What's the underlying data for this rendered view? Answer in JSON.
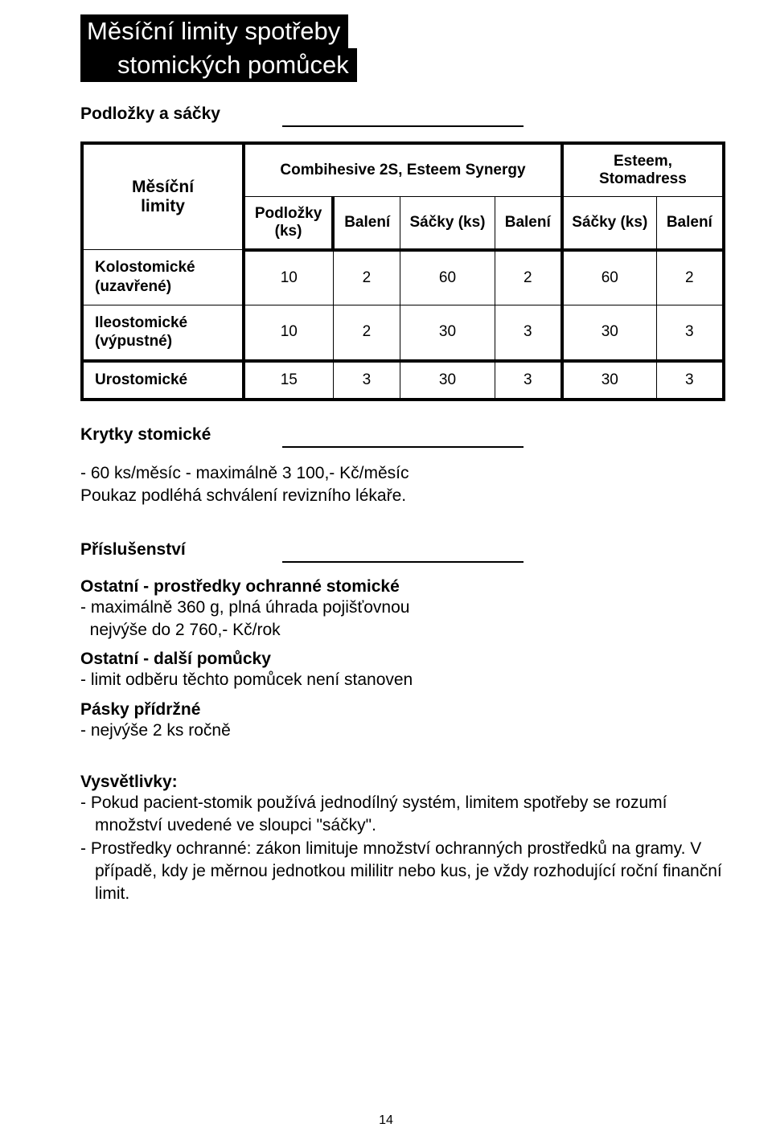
{
  "colors": {
    "text": "#000000",
    "bg": "#ffffff",
    "title_bg": "#000000",
    "title_fg": "#ffffff",
    "border_heavy": "#000000",
    "border_light": "#000000"
  },
  "typography": {
    "body_fontsize_pt": 16,
    "heading_fontsize_pt": 16,
    "title_fontsize_pt": 24,
    "font_family": "Tahoma / Segoe UI"
  },
  "title": {
    "line1": "Měsíční limity spotřeby",
    "line2": "stomických pomůcek"
  },
  "sections": {
    "podlozky": {
      "heading": "Podložky a sáčky"
    },
    "krytky": {
      "heading": "Krytky stomické",
      "line1": "- 60 ks/měsíc - maximálně 3 100,- Kč/měsíc",
      "line2": "Poukaz podléhá schválení revizního lékaře."
    },
    "prislusenstvi": {
      "heading": "Příslušenství",
      "ochranne_head": "Ostatní - prostředky ochranné stomické",
      "ochranne_l1": "- maximálně 360 g, plná úhrada pojišťovnou",
      "ochranne_l2": "  nejvýše do 2 760,- Kč/rok",
      "dalsi_head": "Ostatní - další pomůcky",
      "dalsi_l1": "- limit odběru těchto pomůcek není stanoven",
      "pasky_head": "Pásky přídržné",
      "pasky_l1": "- nejvýše 2 ks ročně"
    },
    "vysvetlivky": {
      "heading": "Vysvětlivky:",
      "bullet1": "- Pokud pacient-stomik používá jednodílný systém, limitem spotřeby se rozumí množství uvedené ve sloupci \"sáčky\".",
      "bullet2": "- Prostředky ochranné: zákon limituje množství ochranných prostředků na gramy.  V případě, kdy je měrnou jednotkou mililitr nebo kus, je vždy rozhodující roční finanční limit."
    }
  },
  "limits_table": {
    "type": "table",
    "row_header_top": "Měsíční\nlimity",
    "groupA_label": "Combihesive 2S, Esteem Synergy",
    "groupB_label": "Esteem, Stomadress",
    "columns_row2": [
      "Podložky\n(ks)",
      "Balení",
      "Sáčky (ks)",
      "Balení",
      "Sáčky (ks)",
      "Balení"
    ],
    "rows": [
      {
        "label": "Kolostomické\n(uzavřené)",
        "cells": [
          "10",
          "2",
          "60",
          "2",
          "60",
          "2"
        ]
      },
      {
        "label": "Ileostomické\n(výpustné)",
        "cells": [
          "10",
          "2",
          "30",
          "3",
          "30",
          "3"
        ]
      },
      {
        "label": "Urostomické",
        "cells": [
          "15",
          "3",
          "30",
          "3",
          "30",
          "3"
        ]
      }
    ],
    "border_heavy_px": 4,
    "border_light_px": 1
  },
  "page_number": "14"
}
